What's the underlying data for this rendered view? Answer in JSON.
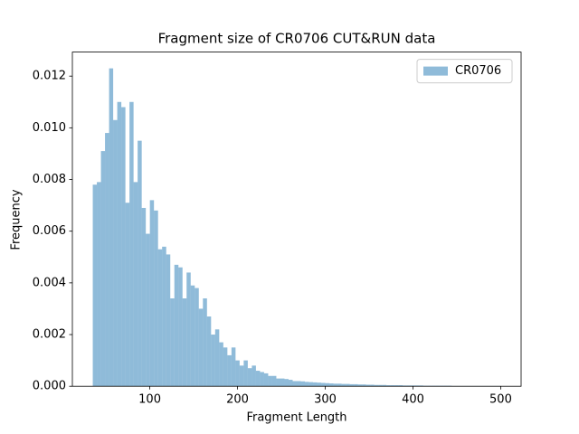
{
  "chart_data": {
    "type": "histogram",
    "title": "Fragment size of CR0706 CUT&RUN data",
    "x_label": "Fragment Length",
    "y_label": "Frequency",
    "bins": [
      35,
      39.65,
      44.3,
      48.95,
      53.6,
      58.25,
      62.9,
      67.55,
      72.2,
      76.85,
      81.5,
      86.15,
      90.8,
      95.45,
      100.1,
      104.75,
      109.4,
      114.05,
      118.7,
      123.35,
      128,
      132.65,
      137.3,
      141.95,
      146.6,
      151.25,
      155.9,
      160.55,
      165.2,
      169.85,
      174.5,
      179.15,
      183.8,
      188.45,
      193.1,
      197.75,
      202.4,
      207.05,
      211.7,
      216.35,
      221,
      225.65,
      230.3,
      234.95,
      239.6,
      244.25,
      248.9,
      253.55,
      258.2,
      262.85,
      267.5,
      272.15,
      276.8,
      281.45,
      286.1,
      290.75,
      295.4,
      300.05,
      304.7,
      309.35,
      314,
      318.65,
      323.3,
      327.95,
      332.6,
      337.25,
      341.9,
      346.55,
      351.2,
      355.85,
      360.5,
      365.15,
      369.8,
      374.45,
      379.1,
      383.75,
      388.4,
      393.05,
      397.7,
      402.35,
      407,
      411.65,
      416.3,
      420.95,
      425.6,
      430.25,
      434.9,
      439.55,
      444.2,
      448.85,
      453.5,
      458.15,
      462.8,
      467.45,
      472.1,
      476.75,
      481.4,
      486.05,
      490.7,
      495.35,
      500
    ],
    "series": [
      {
        "name": "CR0706",
        "color": "#1f77b4",
        "alpha": 0.5,
        "values": [
          0.0078,
          0.0079,
          0.0091,
          0.0098,
          0.0123,
          0.0103,
          0.011,
          0.0108,
          0.0071,
          0.011,
          0.0079,
          0.0095,
          0.0069,
          0.0059,
          0.0072,
          0.0068,
          0.0053,
          0.0054,
          0.0051,
          0.0034,
          0.0047,
          0.0046,
          0.0034,
          0.0044,
          0.0039,
          0.0038,
          0.003,
          0.0034,
          0.0027,
          0.002,
          0.0022,
          0.0017,
          0.0015,
          0.0012,
          0.0015,
          0.001,
          0.0008,
          0.001,
          0.0007,
          0.0008,
          0.0006,
          0.00055,
          0.0005,
          0.0004,
          0.0004,
          0.0003,
          0.0003,
          0.00028,
          0.00025,
          0.0002,
          0.0002,
          0.00019,
          0.00017,
          0.00016,
          0.00015,
          0.00014,
          0.00013,
          0.00012,
          0.00011,
          0.0001,
          0.0001,
          9e-05,
          9e-05,
          8e-05,
          8e-05,
          7e-05,
          7e-05,
          6e-05,
          6e-05,
          5e-05,
          5e-05,
          5e-05,
          4e-05,
          4e-05,
          4e-05,
          4e-05,
          3e-05,
          3e-05,
          3e-05,
          3e-05,
          3e-05,
          2e-05,
          2e-05,
          2e-05,
          2e-05,
          2e-05,
          2e-05,
          2e-05,
          1e-05,
          1e-05,
          1e-05,
          1e-05,
          1e-05,
          1e-05,
          1e-05,
          1e-05,
          1e-05,
          1e-05,
          1e-05,
          1e-05
        ]
      }
    ],
    "xlim": [
      11.75,
      523.25
    ],
    "ylim": [
      0,
      0.01293
    ],
    "xticks": [
      100,
      200,
      300,
      400,
      500
    ],
    "yticks": [
      {
        "value": 0,
        "label": "0.000"
      },
      {
        "value": 0.002,
        "label": "0.002"
      },
      {
        "value": 0.004,
        "label": "0.004"
      },
      {
        "value": 0.006,
        "label": "0.006"
      },
      {
        "value": 0.008,
        "label": "0.008"
      },
      {
        "value": 0.01,
        "label": "0.010"
      },
      {
        "value": 0.012,
        "label": "0.012"
      }
    ],
    "legend": "upper right"
  }
}
